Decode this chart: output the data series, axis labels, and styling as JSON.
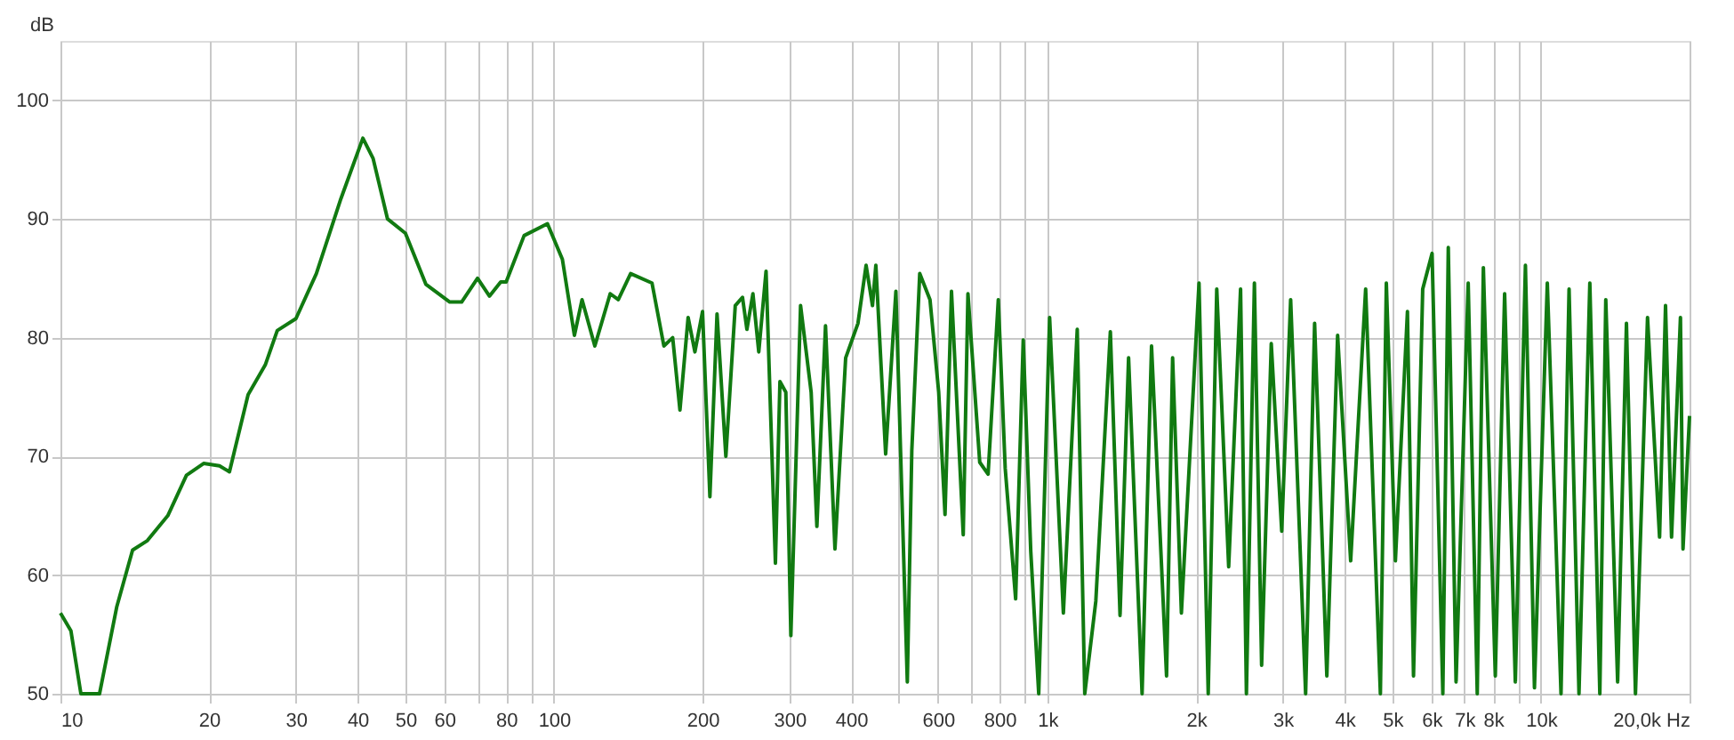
{
  "chart_data": {
    "type": "line",
    "ylabel": "dB",
    "log": "x",
    "grid": true,
    "marker": "none",
    "line_style": "solid",
    "xlim": [
      10,
      20000
    ],
    "ylim": [
      50,
      105
    ],
    "xticks": [
      10,
      20,
      30,
      40,
      50,
      60,
      {
        "value": 70,
        "label": null
      },
      80,
      {
        "value": 90,
        "label": null
      },
      100,
      200,
      300,
      400,
      {
        "value": 500,
        "label": null
      },
      600,
      {
        "value": 700,
        "label": null
      },
      800,
      {
        "value": 900,
        "label": null
      },
      {
        "value": 1000,
        "label": "1k"
      },
      {
        "value": 2000,
        "label": "2k"
      },
      {
        "value": 3000,
        "label": "3k"
      },
      {
        "value": 4000,
        "label": "4k"
      },
      {
        "value": 5000,
        "label": "5k"
      },
      {
        "value": 6000,
        "label": "6k"
      },
      {
        "value": 7000,
        "label": "7k"
      },
      {
        "value": 8000,
        "label": "8k"
      },
      {
        "value": 9000,
        "label": null
      },
      {
        "value": 10000,
        "label": "10k"
      },
      {
        "value": 20000,
        "label": "20,0k Hz"
      }
    ],
    "yticks": [
      50,
      60,
      70,
      80,
      90,
      100
    ],
    "x": [
      10,
      10.5,
      11,
      12,
      13,
      14,
      15,
      16.5,
      18,
      19.5,
      21,
      22,
      24,
      26,
      27.5,
      30,
      33,
      37,
      41,
      43,
      46,
      50,
      55,
      61.5,
      65,
      70,
      74,
      78,
      80,
      87,
      97,
      104,
      110,
      114,
      121,
      130,
      135,
      143,
      158,
      167,
      174,
      180,
      187,
      193,
      200,
      207,
      214,
      223,
      233,
      241,
      246,
      253,
      260,
      269,
      281,
      287,
      295,
      302,
      316,
      332,
      341,
      355,
      371,
      390,
      413,
      429,
      442,
      449,
      470,
      493,
      520,
      531,
      551,
      578,
      602,
      620,
      639,
      675,
      690,
      729,
      758,
      795,
      821,
      862,
      893,
      925,
      960,
      1010,
      1077,
      1149,
      1190,
      1253,
      1341,
      1403,
      1460,
      1555,
      1625,
      1743,
      1793,
      1868,
      2028,
      2117,
      2203,
      2329,
      2462,
      2530,
      2626,
      2716,
      2841,
      2983,
      3110,
      3335,
      3478,
      3682,
      3872,
      4115,
      4413,
      4727,
      4860,
      5070,
      5363,
      5517,
      5759,
      6016,
      6326,
      6489,
      6729,
      7121,
      7428,
      7643,
      8081,
      8440,
      8872,
      9300,
      9700,
      10300,
      10980,
      11400,
      11940,
      12560,
      13160,
      13530,
      14300,
      14900,
      15540,
      16440,
      17390,
      17880,
      18390,
      19170,
      19400,
      20000
    ],
    "series": [
      {
        "color": "#117a11",
        "values": [
          56.8,
          55.3,
          50,
          50,
          57.3,
          62.1,
          62.9,
          65,
          68.4,
          69.4,
          69.2,
          68.7,
          75.2,
          77.7,
          80.6,
          81.6,
          85.4,
          91.7,
          96.8,
          95.1,
          90,
          88.8,
          84.5,
          83,
          83,
          85,
          83.5,
          84.7,
          84.7,
          88.6,
          89.6,
          86.6,
          80.2,
          83.2,
          79.3,
          83.7,
          83.2,
          85.4,
          84.6,
          79.3,
          80,
          73.9,
          81.7,
          78.8,
          82.2,
          66.6,
          82,
          70,
          82.7,
          83.4,
          80.7,
          83.7,
          78.8,
          85.6,
          61,
          76.3,
          75.4,
          54.9,
          82.7,
          75.4,
          64.1,
          81,
          62.2,
          78.3,
          81.2,
          86.1,
          82.7,
          86.1,
          70.2,
          83.9,
          51,
          70.5,
          85.4,
          83.2,
          75.4,
          65.1,
          83.9,
          63.4,
          83.7,
          69.5,
          68.5,
          83.2,
          69,
          58,
          79.8,
          62,
          50,
          81.7,
          56.8,
          80.7,
          50,
          57.8,
          80.5,
          56.6,
          78.3,
          50,
          79.3,
          51.5,
          78.3,
          56.8,
          84.6,
          50,
          84.1,
          60.7,
          84.1,
          50,
          84.6,
          52.4,
          79.5,
          63.7,
          83.2,
          50,
          81.2,
          51.5,
          80.2,
          61.2,
          84.1,
          50,
          84.6,
          61.2,
          82.2,
          51.5,
          84.1,
          87.1,
          50,
          87.6,
          51,
          84.6,
          50,
          85.9,
          51.5,
          83.7,
          51,
          86.1,
          50.5,
          84.6,
          50,
          84.1,
          50,
          84.6,
          50,
          83.2,
          51,
          81.2,
          50,
          81.7,
          63.2,
          82.7,
          63.2,
          81.7,
          62.2,
          73.4
        ]
      }
    ]
  }
}
